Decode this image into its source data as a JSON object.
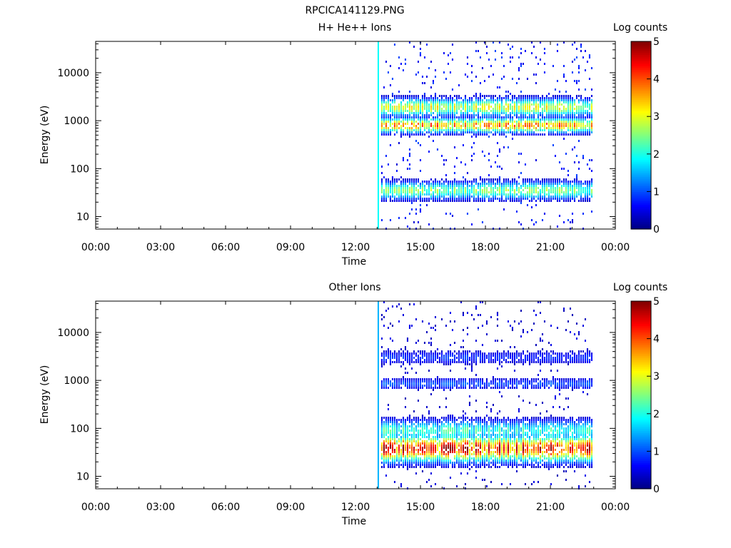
{
  "figure_title": "RPCICA141129.PNG",
  "colors": {
    "background": "#ffffff",
    "axis": "#000000",
    "colormap": [
      "#00008f",
      "#0000ff",
      "#0080ff",
      "#00ffff",
      "#80ff80",
      "#ffff00",
      "#ff8000",
      "#ff0000",
      "#800000"
    ]
  },
  "chart_data": [
    {
      "type": "heatmap",
      "title": "H+ He++ Ions",
      "xlabel": "Time",
      "ylabel": "Energy (eV)",
      "x_ticks": [
        "00:00",
        "03:00",
        "06:00",
        "09:00",
        "12:00",
        "15:00",
        "18:00",
        "21:00",
        "00:00"
      ],
      "xlim_hours": [
        0,
        24
      ],
      "y_scale": "log",
      "ylim": [
        5.5,
        45000
      ],
      "y_ticks": [
        10,
        100,
        1000,
        10000
      ],
      "y_tick_labels": [
        "10",
        "100",
        "1000",
        "10000"
      ],
      "colorbar": {
        "label": "Log counts",
        "range": [
          0,
          5
        ],
        "tick_labels": [
          "0",
          "1",
          "2",
          "3",
          "4",
          "5"
        ],
        "colormap": "jet"
      },
      "data_start_hour": 13.05,
      "data_end_hour": 22.9,
      "vertical_line_hour": 13.05,
      "bands": [
        {
          "energy_eV": 35,
          "log_counts": 2.4,
          "spread_decades": 0.12
        },
        {
          "energy_eV": 800,
          "log_counts": 3.5,
          "spread_decades": 0.1
        },
        {
          "energy_eV": 1900,
          "log_counts": 2.8,
          "spread_decades": 0.12
        }
      ],
      "sparse_background_log_counts": 0.7
    },
    {
      "type": "heatmap",
      "title": "Other Ions",
      "xlabel": "Time",
      "ylabel": "Energy (eV)",
      "x_ticks": [
        "00:00",
        "03:00",
        "06:00",
        "09:00",
        "12:00",
        "15:00",
        "18:00",
        "21:00",
        "00:00"
      ],
      "xlim_hours": [
        0,
        24
      ],
      "y_scale": "log",
      "ylim": [
        5.5,
        45000
      ],
      "y_ticks": [
        10,
        100,
        1000,
        10000
      ],
      "y_tick_labels": [
        "10",
        "100",
        "1000",
        "10000"
      ],
      "colorbar": {
        "label": "Log counts",
        "range": [
          0,
          5
        ],
        "tick_labels": [
          "0",
          "1",
          "2",
          "3",
          "4",
          "5"
        ],
        "colormap": "jet"
      },
      "data_start_hour": 13.05,
      "data_end_hour": 22.9,
      "vertical_line_hour": 13.05,
      "bands": [
        {
          "energy_eV": 38,
          "log_counts": 4.2,
          "spread_decades": 0.18
        },
        {
          "energy_eV": 90,
          "log_counts": 2.0,
          "spread_decades": 0.15
        },
        {
          "energy_eV": 850,
          "log_counts": 1.0,
          "spread_decades": 0.08
        },
        {
          "energy_eV": 3000,
          "log_counts": 0.8,
          "spread_decades": 0.1
        }
      ],
      "sparse_background_log_counts": 0.4
    }
  ]
}
